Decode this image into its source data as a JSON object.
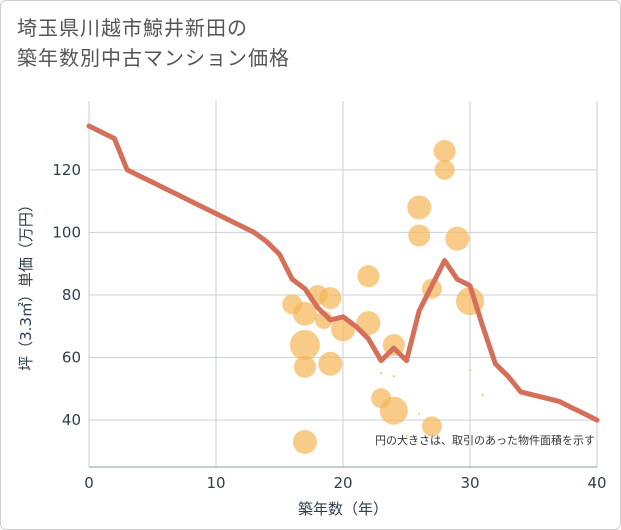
{
  "title_lines": [
    "埼玉県川越市鯨井新田の",
    "築年数別中古マンション価格"
  ],
  "colors": {
    "line": "#d4705a",
    "bubble": "#f5b75c",
    "grid": "#c8d0d8",
    "text": "#2f3e4d"
  },
  "chart_data": {
    "type": "scatter",
    "title": "埼玉県川越市鯨井新田の築年数別中古マンション価格",
    "xlabel": "築年数（年）",
    "ylabel": "坪（3.3㎡）単価（万円）",
    "xlim": [
      0,
      40
    ],
    "ylim": [
      25,
      142
    ],
    "xticks": [
      0,
      10,
      20,
      30,
      40
    ],
    "yticks": [
      40,
      60,
      80,
      100,
      120
    ],
    "grid": true,
    "note": "円の大きさは、取引のあった物件面積を示す",
    "bubbles": [
      {
        "x": 16,
        "y": 77,
        "size": 10
      },
      {
        "x": 17,
        "y": 74,
        "size": 12
      },
      {
        "x": 17,
        "y": 64,
        "size": 15
      },
      {
        "x": 17,
        "y": 57,
        "size": 11
      },
      {
        "x": 17,
        "y": 33,
        "size": 12
      },
      {
        "x": 18,
        "y": 80,
        "size": 10
      },
      {
        "x": 18.5,
        "y": 72,
        "size": 9
      },
      {
        "x": 19,
        "y": 79,
        "size": 11
      },
      {
        "x": 19,
        "y": 58,
        "size": 12
      },
      {
        "x": 20,
        "y": 69,
        "size": 12
      },
      {
        "x": 22,
        "y": 86,
        "size": 11
      },
      {
        "x": 22,
        "y": 71,
        "size": 12
      },
      {
        "x": 23,
        "y": 47,
        "size": 10
      },
      {
        "x": 24,
        "y": 64,
        "size": 11
      },
      {
        "x": 24,
        "y": 43,
        "size": 14
      },
      {
        "x": 26,
        "y": 108,
        "size": 12
      },
      {
        "x": 26,
        "y": 99,
        "size": 11
      },
      {
        "x": 27,
        "y": 82,
        "size": 10
      },
      {
        "x": 27,
        "y": 38,
        "size": 10
      },
      {
        "x": 28,
        "y": 126,
        "size": 11
      },
      {
        "x": 28,
        "y": 120,
        "size": 10
      },
      {
        "x": 29,
        "y": 98,
        "size": 12
      },
      {
        "x": 30,
        "y": 78,
        "size": 14
      },
      {
        "x": 23,
        "y": 55,
        "size": 1
      },
      {
        "x": 24,
        "y": 54,
        "size": 1
      },
      {
        "x": 25,
        "y": 35,
        "size": 1
      },
      {
        "x": 26,
        "y": 42,
        "size": 1
      },
      {
        "x": 30,
        "y": 56,
        "size": 1
      },
      {
        "x": 31,
        "y": 48,
        "size": 1
      }
    ],
    "series": [
      {
        "x": [
          0,
          1,
          2,
          3,
          4,
          5,
          6,
          7,
          8,
          9,
          10,
          11,
          12,
          13,
          14,
          15,
          16,
          17,
          18,
          19,
          20,
          21,
          22,
          23,
          24,
          25,
          26,
          27,
          28,
          29,
          30,
          31,
          32,
          33,
          34,
          35,
          36,
          37,
          38,
          39,
          40
        ],
        "y": [
          134,
          132,
          130,
          120,
          118,
          116,
          114,
          112,
          110,
          108,
          106,
          104,
          102,
          100,
          97,
          93,
          85,
          82,
          76,
          72,
          73,
          70,
          66,
          59,
          63,
          59,
          75,
          83,
          91,
          85,
          83,
          70,
          58,
          54,
          49,
          48,
          47,
          46,
          44,
          42,
          40
        ]
      }
    ]
  }
}
